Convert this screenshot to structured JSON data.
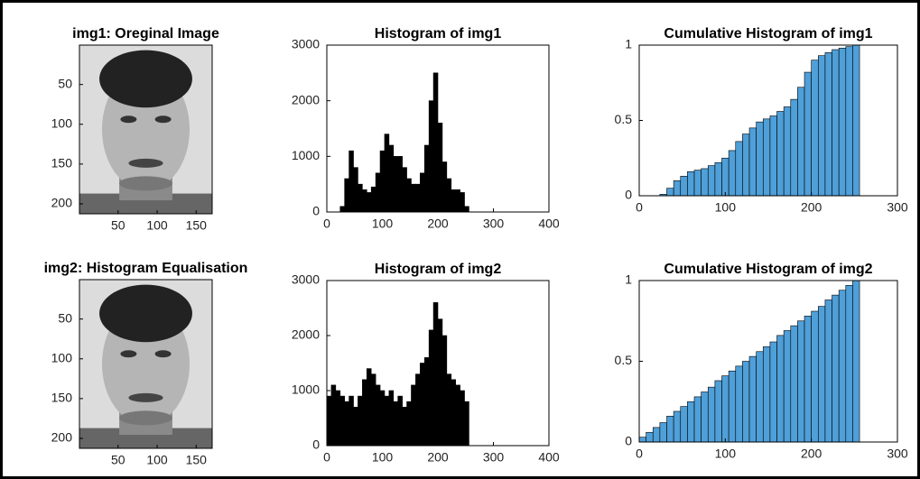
{
  "chart_data": [
    {
      "type": "image",
      "title": "img1: Oreginal Image",
      "xlim": [
        0.5,
        170.5
      ],
      "ylim": [
        0.5,
        212.5
      ],
      "xticks": [
        50,
        100,
        150
      ],
      "yticks": [
        50,
        100,
        150,
        200
      ]
    },
    {
      "type": "histogram",
      "title": "Histogram of img1",
      "color": "#000000",
      "xlim": [
        0,
        400
      ],
      "ylim": [
        0,
        3000
      ],
      "xticks": [
        0,
        100,
        200,
        300,
        400
      ],
      "yticks": [
        0,
        1000,
        2000,
        3000
      ],
      "bins": [
        0,
        8,
        16,
        24,
        32,
        40,
        48,
        56,
        64,
        72,
        80,
        88,
        96,
        104,
        112,
        120,
        128,
        136,
        144,
        152,
        160,
        168,
        176,
        184,
        192,
        200,
        208,
        216,
        224,
        232,
        240,
        248,
        256
      ],
      "values": [
        0,
        0,
        0,
        100,
        600,
        1100,
        800,
        500,
        400,
        350,
        450,
        700,
        1100,
        1400,
        1200,
        1000,
        1000,
        800,
        600,
        500,
        500,
        700,
        1200,
        2000,
        2500,
        1600,
        900,
        600,
        400,
        400,
        350,
        100
      ]
    },
    {
      "type": "histogram",
      "title": "Cumulative Histogram of img1",
      "color": "#4f9fd8",
      "xlim": [
        0,
        300
      ],
      "ylim": [
        0,
        1
      ],
      "xticks": [
        0,
        100,
        200,
        300
      ],
      "yticks": [
        0,
        0.5,
        1
      ],
      "bins": [
        0,
        8,
        16,
        24,
        32,
        40,
        48,
        56,
        64,
        72,
        80,
        88,
        96,
        104,
        112,
        120,
        128,
        136,
        144,
        152,
        160,
        168,
        176,
        184,
        192,
        200,
        208,
        216,
        224,
        232,
        240,
        248,
        256
      ],
      "values": [
        0,
        0,
        0,
        0.01,
        0.05,
        0.1,
        0.13,
        0.16,
        0.17,
        0.18,
        0.2,
        0.22,
        0.25,
        0.3,
        0.36,
        0.41,
        0.45,
        0.49,
        0.51,
        0.53,
        0.56,
        0.59,
        0.64,
        0.72,
        0.82,
        0.9,
        0.93,
        0.95,
        0.97,
        0.98,
        0.99,
        1
      ]
    },
    {
      "type": "image",
      "title": "img2: Histogram Equalisation",
      "xlim": [
        0.5,
        170.5
      ],
      "ylim": [
        0.5,
        212.5
      ],
      "xticks": [
        50,
        100,
        150
      ],
      "yticks": [
        50,
        100,
        150,
        200
      ]
    },
    {
      "type": "histogram",
      "title": "Histogram of img2",
      "color": "#000000",
      "xlim": [
        0,
        400
      ],
      "ylim": [
        0,
        3000
      ],
      "xticks": [
        0,
        100,
        200,
        300,
        400
      ],
      "yticks": [
        0,
        1000,
        2000,
        3000
      ],
      "bins": [
        0,
        8,
        16,
        24,
        32,
        40,
        48,
        56,
        64,
        72,
        80,
        88,
        96,
        104,
        112,
        120,
        128,
        136,
        144,
        152,
        160,
        168,
        176,
        184,
        192,
        200,
        208,
        216,
        224,
        232,
        240,
        248,
        256
      ],
      "values": [
        900,
        1100,
        1000,
        900,
        800,
        900,
        700,
        900,
        1200,
        1400,
        1300,
        1100,
        1000,
        900,
        1000,
        800,
        900,
        700,
        800,
        1100,
        1300,
        1500,
        1600,
        2100,
        2600,
        2300,
        2000,
        1300,
        1200,
        1100,
        1000,
        800
      ]
    },
    {
      "type": "histogram",
      "title": "Cumulative Histogram of img2",
      "color": "#4f9fd8",
      "xlim": [
        0,
        300
      ],
      "ylim": [
        0,
        1
      ],
      "xticks": [
        0,
        100,
        200,
        300
      ],
      "yticks": [
        0,
        0.5,
        1
      ],
      "bins": [
        0,
        8,
        16,
        24,
        32,
        40,
        48,
        56,
        64,
        72,
        80,
        88,
        96,
        104,
        112,
        120,
        128,
        136,
        144,
        152,
        160,
        168,
        176,
        184,
        192,
        200,
        208,
        216,
        224,
        232,
        240,
        248,
        256
      ],
      "values": [
        0.03,
        0.06,
        0.09,
        0.12,
        0.16,
        0.19,
        0.22,
        0.25,
        0.28,
        0.31,
        0.34,
        0.38,
        0.41,
        0.44,
        0.47,
        0.5,
        0.53,
        0.56,
        0.59,
        0.62,
        0.66,
        0.69,
        0.72,
        0.75,
        0.78,
        0.81,
        0.84,
        0.88,
        0.91,
        0.94,
        0.97,
        1
      ]
    }
  ]
}
